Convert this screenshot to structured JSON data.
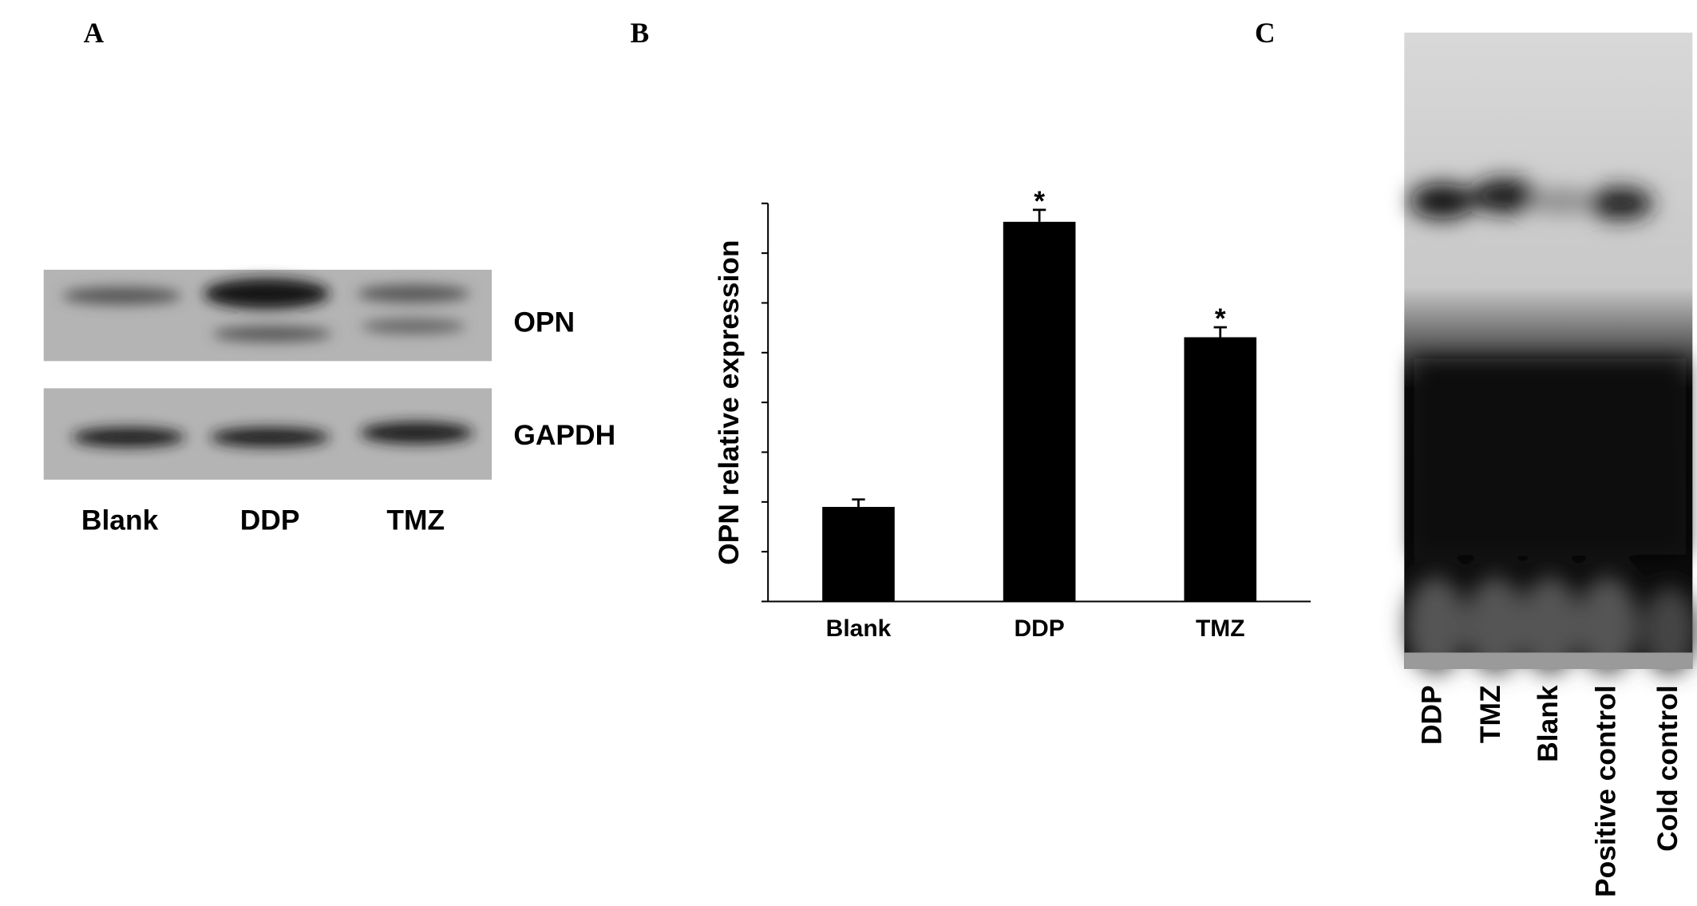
{
  "panel_labels": [
    "A",
    "B",
    "C"
  ],
  "blot_a": {
    "rows": [
      "OPN",
      "GAPDH"
    ],
    "lanes": [
      "Blank",
      "DDP",
      "TMZ"
    ]
  },
  "chart_data": {
    "type": "bar",
    "ylabel": "OPN relative expression",
    "categories": [
      "Blank",
      "DDP",
      "TMZ"
    ],
    "values": [
      1.9,
      7.63,
      5.31
    ],
    "errors": [
      0.15,
      0.24,
      0.2
    ],
    "significance": [
      null,
      "*",
      "*"
    ],
    "color": "#000000",
    "ylim": [
      0,
      8
    ],
    "yticks": [
      0,
      1,
      2,
      3,
      4,
      5,
      6,
      7,
      8
    ]
  },
  "blot_c": {
    "lanes": [
      "DDP",
      "TMZ",
      "Blank",
      "Positive control",
      "Cold control"
    ]
  }
}
